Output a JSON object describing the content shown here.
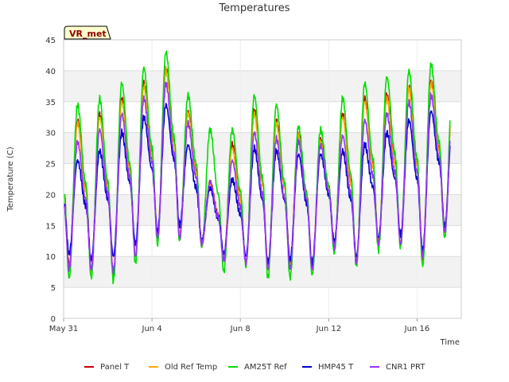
{
  "chart_data": {
    "type": "line",
    "title": "Temperatures",
    "xlabel": "Time",
    "ylabel": "Temperature (C)",
    "site_label": "VR_met",
    "ylim": [
      0,
      45
    ],
    "yticks": [
      0,
      5,
      10,
      15,
      20,
      25,
      30,
      35,
      40,
      45
    ],
    "xlim": [
      "2025-05-31",
      "2025-06-18"
    ],
    "xticks": [
      {
        "date": "2025-05-31",
        "label": "May 31"
      },
      {
        "date": "2025-06-04",
        "label": "Jun 4"
      },
      {
        "date": "2025-06-08",
        "label": "Jun 8"
      },
      {
        "date": "2025-06-12",
        "label": "Jun 12"
      },
      {
        "date": "2025-06-16",
        "label": "Jun 16"
      }
    ],
    "grid": true,
    "banded_background": true,
    "legend_position": "bottom",
    "daily_extremes": {
      "dates": [
        "2025-05-31",
        "2025-06-01",
        "2025-06-02",
        "2025-06-03",
        "2025-06-04",
        "2025-06-05",
        "2025-06-06",
        "2025-06-07",
        "2025-06-08",
        "2025-06-09",
        "2025-06-10",
        "2025-06-11",
        "2025-06-12",
        "2025-06-13",
        "2025-06-14",
        "2025-06-15",
        "2025-06-16",
        "2025-06-17"
      ],
      "series": [
        {
          "name": "Panel T",
          "color": "#cc0000",
          "daily_min": [
            8.5,
            8.0,
            7.0,
            10.0,
            13.0,
            13.5,
            12.0,
            10.0,
            9.0,
            8.0,
            8.5,
            8.0,
            11.5,
            9.0,
            12.0,
            12.0,
            10.0,
            14.0
          ],
          "daily_max": [
            32.0,
            33.0,
            35.5,
            38.0,
            40.5,
            33.5,
            22.0,
            28.0,
            33.5,
            32.0,
            30.0,
            29.0,
            33.0,
            35.5,
            36.0,
            37.5,
            38.5,
            38.5
          ]
        },
        {
          "name": "Old Ref Temp",
          "color": "#ffa500",
          "daily_min": [
            8.0,
            7.5,
            7.0,
            10.0,
            13.0,
            13.5,
            12.0,
            10.0,
            9.0,
            8.0,
            8.5,
            8.0,
            11.5,
            9.0,
            12.0,
            12.0,
            10.0,
            14.0
          ],
          "daily_max": [
            31.5,
            32.5,
            35.0,
            37.5,
            40.0,
            33.0,
            22.0,
            27.5,
            33.0,
            31.5,
            29.5,
            28.5,
            32.5,
            35.0,
            35.5,
            37.0,
            38.0,
            38.0
          ]
        },
        {
          "name": "AM25T Ref",
          "color": "#00dd00",
          "daily_min": [
            6.5,
            6.5,
            6.0,
            9.0,
            12.0,
            12.5,
            11.5,
            7.5,
            8.5,
            6.5,
            6.5,
            7.0,
            10.5,
            8.5,
            11.0,
            11.5,
            8.5,
            13.0
          ],
          "daily_max": [
            34.5,
            35.5,
            38.0,
            40.5,
            43.0,
            36.0,
            30.5,
            30.5,
            36.0,
            34.5,
            31.0,
            30.5,
            35.5,
            38.0,
            39.0,
            40.0,
            41.0,
            41.0
          ]
        },
        {
          "name": "HMP45 T",
          "color": "#0000cc",
          "daily_min": [
            10.5,
            9.5,
            10.0,
            12.0,
            14.0,
            15.0,
            12.5,
            10.5,
            10.0,
            9.0,
            9.5,
            9.0,
            12.5,
            10.0,
            13.0,
            13.5,
            11.0,
            15.0
          ],
          "daily_max": [
            25.5,
            27.0,
            30.0,
            32.5,
            34.5,
            28.0,
            21.0,
            22.5,
            27.5,
            27.0,
            26.5,
            26.5,
            27.0,
            28.0,
            30.0,
            32.0,
            33.5,
            33.5
          ]
        },
        {
          "name": "CNR1 PRT",
          "color": "#9933ff",
          "daily_min": [
            8.0,
            8.0,
            7.5,
            10.0,
            13.0,
            13.0,
            12.0,
            9.5,
            9.0,
            8.0,
            8.0,
            8.0,
            11.5,
            9.0,
            12.0,
            12.0,
            10.0,
            14.0
          ],
          "daily_max": [
            28.5,
            30.5,
            33.0,
            35.5,
            38.0,
            31.5,
            22.0,
            25.5,
            30.0,
            29.0,
            28.5,
            28.0,
            29.5,
            32.0,
            33.0,
            35.0,
            36.0,
            36.0
          ]
        }
      ]
    }
  }
}
